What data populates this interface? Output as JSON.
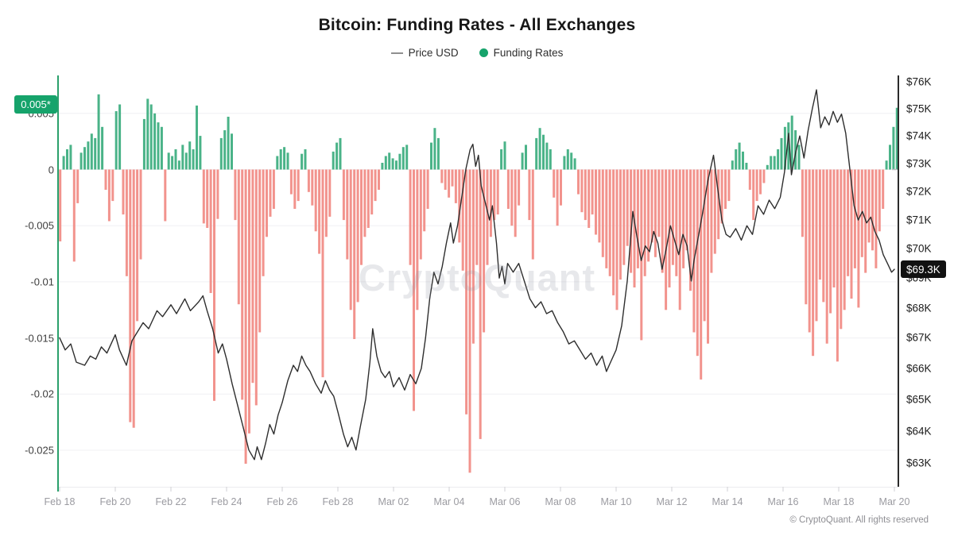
{
  "title": "Bitcoin: Funding Rates - All Exchanges",
  "legend": {
    "price_label": "Price USD",
    "funding_label": "Funding Rates"
  },
  "watermark": "CryptoQuant",
  "footer": "© CryptoQuant. All rights reserved",
  "badges": {
    "funding_current_label": "0.005*",
    "price_current_label": "$69.3K"
  },
  "colors": {
    "funding_positive": "#4ab388",
    "funding_negative": "#f2938d",
    "funding_badge_bg": "#16a36b",
    "price_badge_bg": "#111111",
    "price_line": "#2e2e2e",
    "left_axis_line": "#2aa06c",
    "right_axis_line": "#2b2b2b",
    "gridline": "#f0f0f3",
    "tick_mark": "#cfcfd4"
  },
  "chart_data": {
    "type": "bar+line",
    "title": "Bitcoin: Funding Rates - All Exchanges",
    "legend_entries": [
      "Price USD",
      "Funding Rates"
    ],
    "x_axis": {
      "tick_labels": [
        "Feb 18",
        "Feb 20",
        "Feb 22",
        "Feb 24",
        "Feb 26",
        "Feb 28",
        "Mar 02",
        "Mar 04",
        "Mar 06",
        "Mar 08",
        "Mar 10",
        "Mar 12",
        "Mar 14",
        "Mar 16",
        "Mar 18",
        "Mar 20"
      ],
      "tick_days": [
        0,
        2,
        4,
        6,
        8,
        10,
        12,
        14,
        16,
        18,
        20,
        22,
        24,
        26,
        28,
        30
      ],
      "days_total": 30
    },
    "funding_axis": {
      "side": "left",
      "tick_labels": [
        "0.005",
        "0",
        "-0.005",
        "-0.01",
        "-0.015",
        "-0.02",
        "-0.025"
      ],
      "tick_values": [
        0.005,
        0,
        -0.005,
        -0.01,
        -0.015,
        -0.02,
        -0.025
      ],
      "current_value": 0.005,
      "grid": true
    },
    "price_axis": {
      "side": "right",
      "scale": "log",
      "tick_labels": [
        "$76K",
        "$75K",
        "$74K",
        "$73K",
        "$72K",
        "$71K",
        "$70K",
        "$69K",
        "$68K",
        "$67K",
        "$66K",
        "$65K",
        "$64K",
        "$63K"
      ],
      "tick_values": [
        76,
        75,
        74,
        73,
        72,
        71,
        70,
        69,
        68,
        67,
        66,
        65,
        64,
        63
      ],
      "current_value_k": 69.3
    },
    "series": [
      {
        "name": "Funding Rates",
        "type": "bar",
        "interval_hours": 3,
        "values": [
          -0.0064,
          0.0012,
          0.0018,
          0.0022,
          -0.0082,
          -0.003,
          0.0015,
          0.002,
          0.0025,
          0.0032,
          0.0028,
          0.0067,
          0.0038,
          -0.0018,
          -0.0046,
          -0.0028,
          0.0052,
          0.0058,
          -0.004,
          -0.0095,
          -0.0225,
          -0.023,
          -0.0135,
          -0.008,
          0.0045,
          0.0063,
          0.0058,
          0.005,
          0.0042,
          0.0038,
          -0.0046,
          0.0015,
          0.0012,
          0.0018,
          0.0008,
          0.0022,
          0.0015,
          0.0025,
          0.0018,
          0.0057,
          0.003,
          -0.0048,
          -0.0052,
          -0.011,
          -0.0206,
          -0.0044,
          0.0028,
          0.0035,
          0.0047,
          0.0032,
          -0.0045,
          -0.012,
          -0.0205,
          -0.0262,
          -0.0235,
          -0.019,
          -0.021,
          -0.0145,
          -0.0095,
          -0.006,
          -0.0042,
          -0.0035,
          0.0012,
          0.0018,
          0.002,
          0.0015,
          -0.0022,
          -0.0035,
          -0.0028,
          0.0014,
          0.0018,
          -0.002,
          -0.0032,
          -0.0055,
          -0.0075,
          -0.0185,
          -0.006,
          -0.0042,
          0.0016,
          0.0024,
          0.0028,
          -0.0045,
          -0.008,
          -0.0125,
          -0.0151,
          -0.0118,
          -0.0085,
          -0.006,
          -0.0052,
          -0.004,
          -0.0028,
          -0.0018,
          0.0006,
          0.0012,
          0.0015,
          0.001,
          0.0008,
          0.0014,
          0.002,
          0.0022,
          -0.0085,
          -0.0215,
          -0.0125,
          -0.008,
          -0.0055,
          -0.0035,
          0.0024,
          0.0037,
          0.0028,
          -0.0012,
          -0.0018,
          -0.0025,
          -0.0015,
          -0.003,
          -0.0065,
          -0.009,
          -0.0218,
          -0.027,
          -0.0155,
          -0.0085,
          -0.024,
          -0.0145,
          -0.0085,
          -0.006,
          -0.0045,
          -0.004,
          0.0018,
          0.0025,
          -0.0035,
          -0.005,
          -0.006,
          -0.0032,
          0.0015,
          0.0022,
          -0.0045,
          -0.008,
          0.0028,
          0.0037,
          0.0031,
          0.0024,
          0.0018,
          -0.0025,
          -0.005,
          -0.0032,
          0.0012,
          0.0018,
          0.0015,
          0.001,
          -0.0022,
          -0.0038,
          -0.0045,
          -0.0052,
          -0.004,
          -0.0058,
          -0.0065,
          -0.0078,
          -0.0088,
          -0.0095,
          -0.0112,
          -0.0125,
          -0.0098,
          -0.0085,
          -0.0068,
          -0.0092,
          -0.0105,
          -0.0088,
          -0.0152,
          -0.0095,
          -0.0082,
          -0.0065,
          -0.0078,
          -0.006,
          -0.0092,
          -0.0125,
          -0.0105,
          -0.0085,
          -0.0095,
          -0.0125,
          -0.0088,
          -0.0072,
          -0.0108,
          -0.0145,
          -0.0166,
          -0.0187,
          -0.0135,
          -0.0155,
          -0.0092,
          -0.0075,
          -0.0062,
          -0.0048,
          -0.0035,
          -0.0028,
          0.0008,
          0.0018,
          0.0024,
          0.0016,
          0.0006,
          -0.0018,
          -0.0045,
          -0.0028,
          -0.0022,
          -0.0012,
          0.0004,
          0.0012,
          0.0012,
          0.0018,
          0.0028,
          0.0038,
          0.0042,
          0.0048,
          0.0035,
          0.0022,
          -0.006,
          -0.012,
          -0.0145,
          -0.0166,
          -0.0135,
          -0.0098,
          -0.0118,
          -0.0155,
          -0.0128,
          -0.0105,
          -0.0171,
          -0.0142,
          -0.0125,
          -0.0095,
          -0.0115,
          -0.0088,
          -0.0123,
          -0.0078,
          -0.0092,
          -0.0065,
          -0.0072,
          -0.0088,
          -0.0055,
          -0.0035,
          0.0008,
          0.0022,
          0.0038,
          0.0055
        ]
      },
      {
        "name": "Price USD",
        "type": "line",
        "unit": "USD thousands",
        "points": [
          [
            0.0,
            67.0
          ],
          [
            0.2,
            66.6
          ],
          [
            0.4,
            66.8
          ],
          [
            0.6,
            66.2
          ],
          [
            0.9,
            66.1
          ],
          [
            1.1,
            66.4
          ],
          [
            1.3,
            66.3
          ],
          [
            1.5,
            66.7
          ],
          [
            1.7,
            66.5
          ],
          [
            2.0,
            67.1
          ],
          [
            2.15,
            66.6
          ],
          [
            2.4,
            66.1
          ],
          [
            2.6,
            66.9
          ],
          [
            2.8,
            67.2
          ],
          [
            3.0,
            67.5
          ],
          [
            3.2,
            67.3
          ],
          [
            3.5,
            67.9
          ],
          [
            3.7,
            67.7
          ],
          [
            4.0,
            68.1
          ],
          [
            4.2,
            67.8
          ],
          [
            4.5,
            68.3
          ],
          [
            4.7,
            67.9
          ],
          [
            5.0,
            68.2
          ],
          [
            5.15,
            68.4
          ],
          [
            5.3,
            67.9
          ],
          [
            5.5,
            67.3
          ],
          [
            5.7,
            66.5
          ],
          [
            5.85,
            66.8
          ],
          [
            6.0,
            66.3
          ],
          [
            6.2,
            65.5
          ],
          [
            6.4,
            64.8
          ],
          [
            6.6,
            64.1
          ],
          [
            6.8,
            63.4
          ],
          [
            7.0,
            63.1
          ],
          [
            7.1,
            63.5
          ],
          [
            7.25,
            63.1
          ],
          [
            7.4,
            63.6
          ],
          [
            7.55,
            64.2
          ],
          [
            7.7,
            63.9
          ],
          [
            7.85,
            64.5
          ],
          [
            8.0,
            64.9
          ],
          [
            8.2,
            65.6
          ],
          [
            8.4,
            66.1
          ],
          [
            8.55,
            65.9
          ],
          [
            8.7,
            66.4
          ],
          [
            8.85,
            66.1
          ],
          [
            9.0,
            65.9
          ],
          [
            9.2,
            65.5
          ],
          [
            9.4,
            65.2
          ],
          [
            9.55,
            65.6
          ],
          [
            9.7,
            65.3
          ],
          [
            9.85,
            65.1
          ],
          [
            10.0,
            64.6
          ],
          [
            10.2,
            63.9
          ],
          [
            10.35,
            63.5
          ],
          [
            10.5,
            63.8
          ],
          [
            10.65,
            63.4
          ],
          [
            10.8,
            64.1
          ],
          [
            11.0,
            65.0
          ],
          [
            11.15,
            66.2
          ],
          [
            11.25,
            67.3
          ],
          [
            11.4,
            66.4
          ],
          [
            11.55,
            65.9
          ],
          [
            11.7,
            65.7
          ],
          [
            11.85,
            65.9
          ],
          [
            12.0,
            65.4
          ],
          [
            12.2,
            65.7
          ],
          [
            12.4,
            65.3
          ],
          [
            12.6,
            65.8
          ],
          [
            12.8,
            65.5
          ],
          [
            13.0,
            66.0
          ],
          [
            13.15,
            67.0
          ],
          [
            13.3,
            68.3
          ],
          [
            13.45,
            69.2
          ],
          [
            13.6,
            68.8
          ],
          [
            13.75,
            69.4
          ],
          [
            13.9,
            70.2
          ],
          [
            14.05,
            70.9
          ],
          [
            14.15,
            70.2
          ],
          [
            14.3,
            70.8
          ],
          [
            14.45,
            71.8
          ],
          [
            14.6,
            72.8
          ],
          [
            14.75,
            73.5
          ],
          [
            14.85,
            73.7
          ],
          [
            14.95,
            72.9
          ],
          [
            15.05,
            73.3
          ],
          [
            15.15,
            72.2
          ],
          [
            15.3,
            71.6
          ],
          [
            15.45,
            71.0
          ],
          [
            15.55,
            71.5
          ],
          [
            15.7,
            70.2
          ],
          [
            15.8,
            69.0
          ],
          [
            15.9,
            69.4
          ],
          [
            16.0,
            68.8
          ],
          [
            16.1,
            69.5
          ],
          [
            16.3,
            69.2
          ],
          [
            16.5,
            69.5
          ],
          [
            16.7,
            68.9
          ],
          [
            16.9,
            68.3
          ],
          [
            17.1,
            68.0
          ],
          [
            17.3,
            68.2
          ],
          [
            17.5,
            67.8
          ],
          [
            17.7,
            67.9
          ],
          [
            17.9,
            67.5
          ],
          [
            18.1,
            67.2
          ],
          [
            18.3,
            66.8
          ],
          [
            18.5,
            66.9
          ],
          [
            18.7,
            66.6
          ],
          [
            18.9,
            66.3
          ],
          [
            19.1,
            66.5
          ],
          [
            19.3,
            66.1
          ],
          [
            19.5,
            66.4
          ],
          [
            19.65,
            65.9
          ],
          [
            19.8,
            66.2
          ],
          [
            20.0,
            66.6
          ],
          [
            20.2,
            67.4
          ],
          [
            20.4,
            68.9
          ],
          [
            20.6,
            71.3
          ],
          [
            20.75,
            70.4
          ],
          [
            20.9,
            69.6
          ],
          [
            21.05,
            70.1
          ],
          [
            21.2,
            69.9
          ],
          [
            21.35,
            70.6
          ],
          [
            21.5,
            70.2
          ],
          [
            21.65,
            69.3
          ],
          [
            21.8,
            70.0
          ],
          [
            21.95,
            70.8
          ],
          [
            22.1,
            70.3
          ],
          [
            22.25,
            69.8
          ],
          [
            22.4,
            70.5
          ],
          [
            22.55,
            70.1
          ],
          [
            22.7,
            68.9
          ],
          [
            22.8,
            69.6
          ],
          [
            22.95,
            70.4
          ],
          [
            23.1,
            71.2
          ],
          [
            23.3,
            72.4
          ],
          [
            23.5,
            73.3
          ],
          [
            23.65,
            72.1
          ],
          [
            23.8,
            71.0
          ],
          [
            23.95,
            70.5
          ],
          [
            24.1,
            70.4
          ],
          [
            24.3,
            70.7
          ],
          [
            24.5,
            70.3
          ],
          [
            24.7,
            70.8
          ],
          [
            24.9,
            70.5
          ],
          [
            25.1,
            71.5
          ],
          [
            25.3,
            71.2
          ],
          [
            25.5,
            71.7
          ],
          [
            25.7,
            71.4
          ],
          [
            25.9,
            71.8
          ],
          [
            26.05,
            72.7
          ],
          [
            26.2,
            74.1
          ],
          [
            26.3,
            72.6
          ],
          [
            26.45,
            73.4
          ],
          [
            26.6,
            74.0
          ],
          [
            26.75,
            73.2
          ],
          [
            26.9,
            74.2
          ],
          [
            27.05,
            75.0
          ],
          [
            27.2,
            75.7
          ],
          [
            27.35,
            74.3
          ],
          [
            27.5,
            74.7
          ],
          [
            27.65,
            74.4
          ],
          [
            27.8,
            74.9
          ],
          [
            27.95,
            74.5
          ],
          [
            28.1,
            74.8
          ],
          [
            28.25,
            74.1
          ],
          [
            28.4,
            72.8
          ],
          [
            28.55,
            71.5
          ],
          [
            28.7,
            71.0
          ],
          [
            28.85,
            71.3
          ],
          [
            29.0,
            70.9
          ],
          [
            29.15,
            71.1
          ],
          [
            29.3,
            70.6
          ],
          [
            29.45,
            70.3
          ],
          [
            29.6,
            69.8
          ],
          [
            29.75,
            69.5
          ],
          [
            29.9,
            69.2
          ],
          [
            30.0,
            69.3
          ]
        ]
      }
    ],
    "current": {
      "funding": 0.005,
      "price_usd_k": 69.3
    }
  }
}
